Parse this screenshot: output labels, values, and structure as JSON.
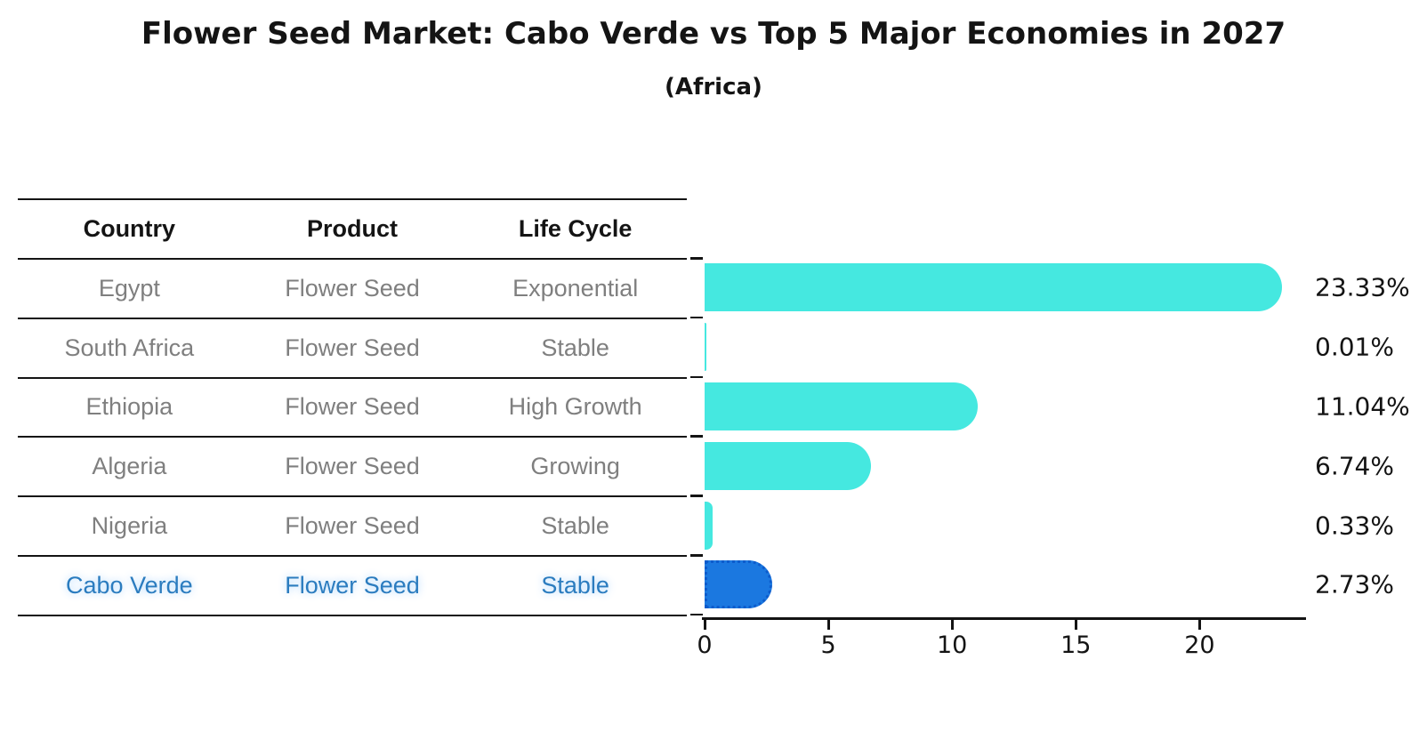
{
  "title": "Flower Seed Market: Cabo Verde vs Top 5 Major Economies in 2027",
  "subtitle": "(Africa)",
  "table": {
    "headers": [
      "Country",
      "Product",
      "Life Cycle"
    ],
    "rows": [
      {
        "country": "Egypt",
        "product": "Flower Seed",
        "life_cycle": "Exponential",
        "highlight": false
      },
      {
        "country": "South Africa",
        "product": "Flower Seed",
        "life_cycle": "Stable",
        "highlight": false
      },
      {
        "country": "Ethiopia",
        "product": "Flower Seed",
        "life_cycle": "High Growth",
        "highlight": false
      },
      {
        "country": "Algeria",
        "product": "Flower Seed",
        "life_cycle": "Growing",
        "highlight": false
      },
      {
        "country": "Nigeria",
        "product": "Flower Seed",
        "life_cycle": "Stable",
        "highlight": false
      },
      {
        "country": "Cabo Verde",
        "product": "Flower Seed",
        "life_cycle": "Stable",
        "highlight": true
      }
    ]
  },
  "chart_data": {
    "type": "bar",
    "orientation": "horizontal",
    "title": "Flower Seed Market: Cabo Verde vs Top 5 Major Economies in 2027",
    "subtitle": "(Africa)",
    "categories": [
      "Egypt",
      "South Africa",
      "Ethiopia",
      "Algeria",
      "Nigeria",
      "Cabo Verde"
    ],
    "values": [
      23.33,
      0.01,
      11.04,
      6.74,
      0.33,
      2.73
    ],
    "value_labels": [
      "23.33%",
      "0.01%",
      "11.04%",
      "6.74%",
      "0.33%",
      "2.73%"
    ],
    "xlabel": "",
    "ylabel": "",
    "xlim": [
      0,
      24.3
    ],
    "xticks": [
      0,
      5,
      10,
      15,
      20
    ],
    "xtick_labels": [
      "0",
      "5",
      "10",
      "15",
      "20"
    ],
    "grid": false,
    "legend": false,
    "highlight_index": 5
  },
  "colors": {
    "bar_cyan": "#45e8e0",
    "bar_blue": "#1b78e0",
    "bar_blue_dot": "#0d5ccc",
    "highlight_text": "#2b7cbf",
    "row_text": "#7f7f7f",
    "ink": "#141414"
  }
}
